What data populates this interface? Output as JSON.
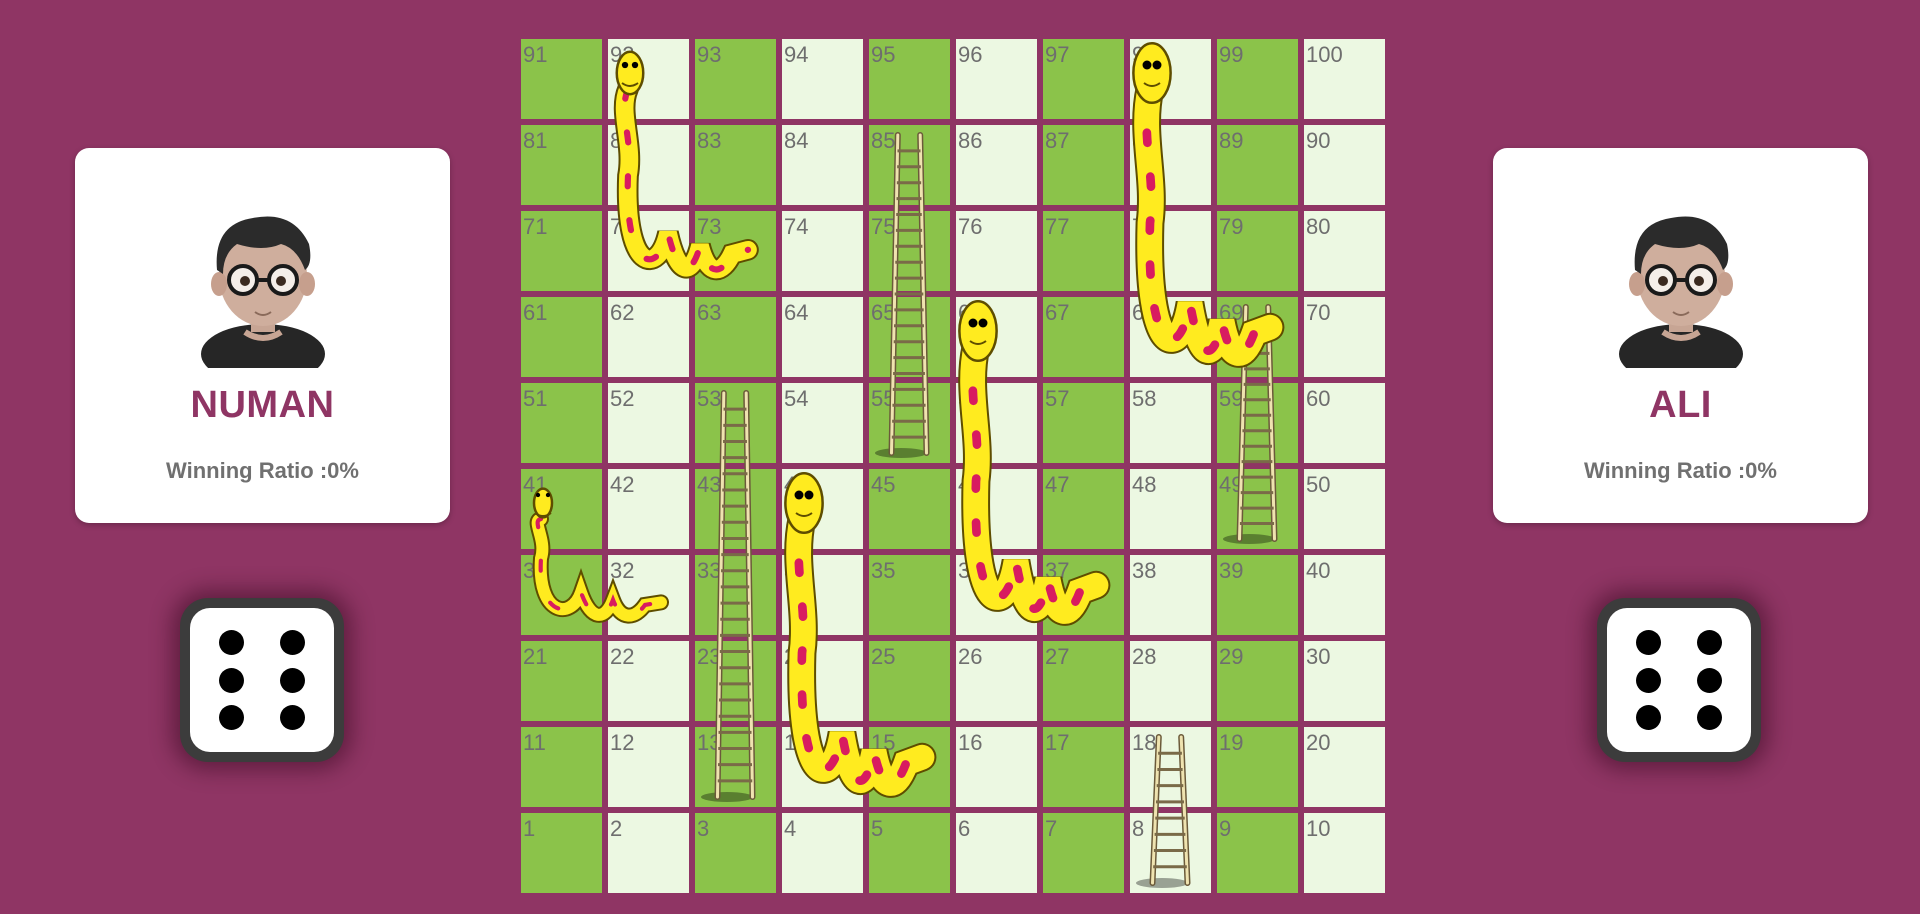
{
  "players": [
    {
      "name": "NUMAN",
      "ratio": "Winning Ratio :0%",
      "dice_value": 6
    },
    {
      "name": "ALI",
      "ratio": "Winning Ratio :0%",
      "dice_value": 6
    }
  ],
  "board": {
    "size": 10,
    "colors": {
      "dark": "#8bc34a",
      "light": "#ecf8e2",
      "background": "#8f3564"
    },
    "snakes": [
      {
        "head": 92,
        "tail": 73
      },
      {
        "head": 98,
        "tail": 69
      },
      {
        "head": 66,
        "tail": 37
      },
      {
        "head": 44,
        "tail": 15
      },
      {
        "head": 41,
        "tail": 32
      }
    ],
    "ladders": [
      {
        "bottom": 55,
        "top": 85
      },
      {
        "bottom": 13,
        "top": 53
      },
      {
        "bottom": 49,
        "top": 69
      },
      {
        "bottom": 8,
        "top": 18
      }
    ]
  }
}
